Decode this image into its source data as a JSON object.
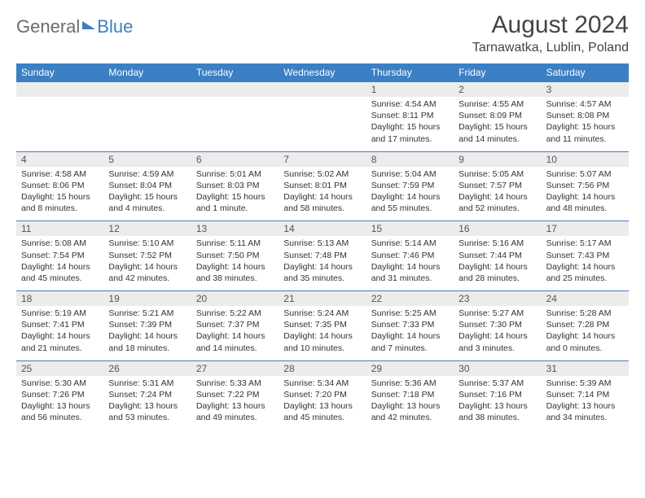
{
  "brand": {
    "text1": "General",
    "text2": "Blue"
  },
  "title": "August 2024",
  "location": "Tarnawatka, Lublin, Poland",
  "colors": {
    "accent": "#3b7fc4",
    "daynum_bg": "#ececec",
    "text": "#333333"
  },
  "day_headers": [
    "Sunday",
    "Monday",
    "Tuesday",
    "Wednesday",
    "Thursday",
    "Friday",
    "Saturday"
  ],
  "weeks": [
    [
      null,
      null,
      null,
      null,
      {
        "n": "1",
        "sr": "4:54 AM",
        "ss": "8:11 PM",
        "dl": "15 hours and 17 minutes."
      },
      {
        "n": "2",
        "sr": "4:55 AM",
        "ss": "8:09 PM",
        "dl": "15 hours and 14 minutes."
      },
      {
        "n": "3",
        "sr": "4:57 AM",
        "ss": "8:08 PM",
        "dl": "15 hours and 11 minutes."
      }
    ],
    [
      {
        "n": "4",
        "sr": "4:58 AM",
        "ss": "8:06 PM",
        "dl": "15 hours and 8 minutes."
      },
      {
        "n": "5",
        "sr": "4:59 AM",
        "ss": "8:04 PM",
        "dl": "15 hours and 4 minutes."
      },
      {
        "n": "6",
        "sr": "5:01 AM",
        "ss": "8:03 PM",
        "dl": "15 hours and 1 minute."
      },
      {
        "n": "7",
        "sr": "5:02 AM",
        "ss": "8:01 PM",
        "dl": "14 hours and 58 minutes."
      },
      {
        "n": "8",
        "sr": "5:04 AM",
        "ss": "7:59 PM",
        "dl": "14 hours and 55 minutes."
      },
      {
        "n": "9",
        "sr": "5:05 AM",
        "ss": "7:57 PM",
        "dl": "14 hours and 52 minutes."
      },
      {
        "n": "10",
        "sr": "5:07 AM",
        "ss": "7:56 PM",
        "dl": "14 hours and 48 minutes."
      }
    ],
    [
      {
        "n": "11",
        "sr": "5:08 AM",
        "ss": "7:54 PM",
        "dl": "14 hours and 45 minutes."
      },
      {
        "n": "12",
        "sr": "5:10 AM",
        "ss": "7:52 PM",
        "dl": "14 hours and 42 minutes."
      },
      {
        "n": "13",
        "sr": "5:11 AM",
        "ss": "7:50 PM",
        "dl": "14 hours and 38 minutes."
      },
      {
        "n": "14",
        "sr": "5:13 AM",
        "ss": "7:48 PM",
        "dl": "14 hours and 35 minutes."
      },
      {
        "n": "15",
        "sr": "5:14 AM",
        "ss": "7:46 PM",
        "dl": "14 hours and 31 minutes."
      },
      {
        "n": "16",
        "sr": "5:16 AM",
        "ss": "7:44 PM",
        "dl": "14 hours and 28 minutes."
      },
      {
        "n": "17",
        "sr": "5:17 AM",
        "ss": "7:43 PM",
        "dl": "14 hours and 25 minutes."
      }
    ],
    [
      {
        "n": "18",
        "sr": "5:19 AM",
        "ss": "7:41 PM",
        "dl": "14 hours and 21 minutes."
      },
      {
        "n": "19",
        "sr": "5:21 AM",
        "ss": "7:39 PM",
        "dl": "14 hours and 18 minutes."
      },
      {
        "n": "20",
        "sr": "5:22 AM",
        "ss": "7:37 PM",
        "dl": "14 hours and 14 minutes."
      },
      {
        "n": "21",
        "sr": "5:24 AM",
        "ss": "7:35 PM",
        "dl": "14 hours and 10 minutes."
      },
      {
        "n": "22",
        "sr": "5:25 AM",
        "ss": "7:33 PM",
        "dl": "14 hours and 7 minutes."
      },
      {
        "n": "23",
        "sr": "5:27 AM",
        "ss": "7:30 PM",
        "dl": "14 hours and 3 minutes."
      },
      {
        "n": "24",
        "sr": "5:28 AM",
        "ss": "7:28 PM",
        "dl": "14 hours and 0 minutes."
      }
    ],
    [
      {
        "n": "25",
        "sr": "5:30 AM",
        "ss": "7:26 PM",
        "dl": "13 hours and 56 minutes."
      },
      {
        "n": "26",
        "sr": "5:31 AM",
        "ss": "7:24 PM",
        "dl": "13 hours and 53 minutes."
      },
      {
        "n": "27",
        "sr": "5:33 AM",
        "ss": "7:22 PM",
        "dl": "13 hours and 49 minutes."
      },
      {
        "n": "28",
        "sr": "5:34 AM",
        "ss": "7:20 PM",
        "dl": "13 hours and 45 minutes."
      },
      {
        "n": "29",
        "sr": "5:36 AM",
        "ss": "7:18 PM",
        "dl": "13 hours and 42 minutes."
      },
      {
        "n": "30",
        "sr": "5:37 AM",
        "ss": "7:16 PM",
        "dl": "13 hours and 38 minutes."
      },
      {
        "n": "31",
        "sr": "5:39 AM",
        "ss": "7:14 PM",
        "dl": "13 hours and 34 minutes."
      }
    ]
  ],
  "labels": {
    "sunrise": "Sunrise:",
    "sunset": "Sunset:",
    "daylight": "Daylight:"
  }
}
